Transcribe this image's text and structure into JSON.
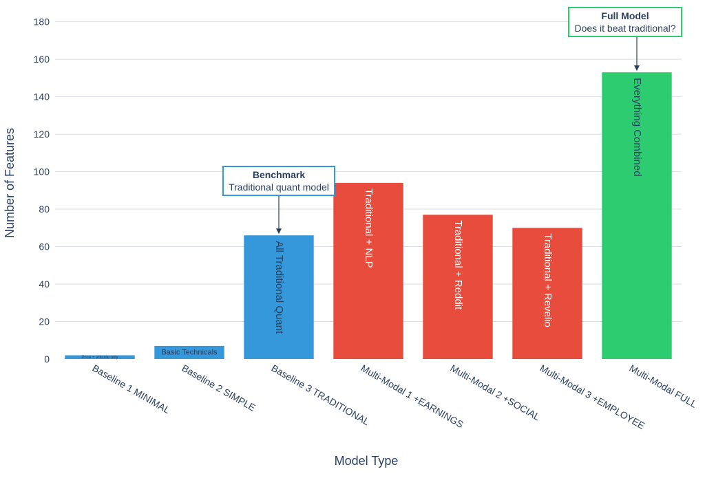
{
  "chart_data": {
    "type": "bar",
    "xlabel": "Model Type",
    "ylabel": "Number of Features",
    "ylim": [
      0,
      185
    ],
    "yticks": [
      0,
      20,
      40,
      60,
      80,
      100,
      120,
      140,
      160,
      180
    ],
    "grid": true,
    "categories": [
      "Baseline 1 MINIMAL",
      "Baseline 2 SIMPLE",
      "Baseline 3 TRADITIONAL",
      "Multi-Modal 1 +EARNINGS",
      "Multi-Modal 2 +SOCIAL",
      "Multi-Modal 3 +EMPLOYEE",
      "Multi-Modal FULL"
    ],
    "values": [
      2,
      7,
      66,
      94,
      77,
      70,
      153
    ],
    "bar_labels": [
      "Price + Volume only",
      "Basic Technicals",
      "All Traditional Quant",
      "Traditional + NLP",
      "Traditional + Reddit",
      "Traditional + Revelio",
      "Everything Combined"
    ],
    "bar_colors": [
      "#3498db",
      "#3498db",
      "#3498db",
      "#e74c3c",
      "#e74c3c",
      "#e74c3c",
      "#2ecc71"
    ],
    "bar_label_colors": [
      "#2a3f5f",
      "#2a3f5f",
      "#2a3f5f",
      "#ffffff",
      "#ffffff",
      "#ffffff",
      "#2a3f5f"
    ],
    "annotations": [
      {
        "bar_index": 2,
        "title": "Benchmark",
        "subtitle": "Traditional quant model",
        "border_color": "#3498db"
      },
      {
        "bar_index": 6,
        "title": "Full Model",
        "subtitle": "Does it beat traditional?",
        "border_color": "#2ecc71"
      }
    ],
    "colors": {
      "text": "#2a3f5f",
      "grid": "#d9dde4",
      "arrow": "#2a3f5f"
    }
  }
}
